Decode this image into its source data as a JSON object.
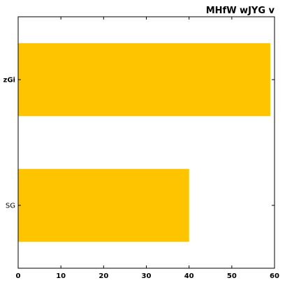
{
  "chart_data": {
    "type": "bar",
    "orientation": "horizontal",
    "title": "MHfW wJYG v",
    "title_position": "top-right",
    "categories": [
      "zGi",
      "SG"
    ],
    "category_label_bold": [
      true,
      false
    ],
    "values": [
      59,
      40
    ],
    "xlim": [
      0,
      60
    ],
    "xticks": [
      0,
      10,
      20,
      30,
      40,
      50,
      60
    ],
    "xlabel": "",
    "ylabel": "",
    "grid": false,
    "legend": "none",
    "bar_color": "#FFC400"
  }
}
